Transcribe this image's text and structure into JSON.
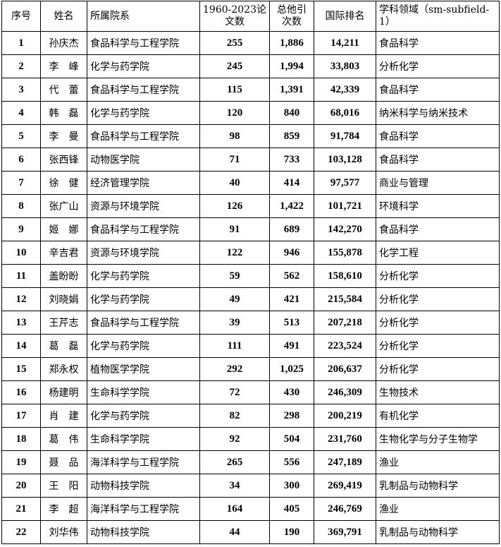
{
  "headers": [
    "序号",
    "姓名",
    "所属院系",
    "1960-2023论文数",
    "总他引次数",
    "国际排名",
    "学科领域（sm-subfield-1）"
  ],
  "rows": [
    [
      "1",
      "孙庆杰",
      "食品科学与工程学院",
      "255",
      "1,886",
      "14,211",
      "食品科学"
    ],
    [
      "2",
      "李　峰",
      "化学与药学院",
      "245",
      "1,994",
      "33,803",
      "分析化学"
    ],
    [
      "3",
      "代　蕾",
      "食品科学与工程学院",
      "115",
      "1,391",
      "42,339",
      "食品科学"
    ],
    [
      "4",
      "韩　磊",
      "化学与药学院",
      "120",
      "840",
      "68,016",
      "纳米科学与纳米技术"
    ],
    [
      "5",
      "李　曼",
      "食品科学与工程学院",
      "98",
      "859",
      "91,784",
      "食品科学"
    ],
    [
      "6",
      "张西锋",
      "动物医学院",
      "71",
      "733",
      "103,128",
      "食品科学"
    ],
    [
      "7",
      "徐　健",
      "经济管理学院",
      "40",
      "414",
      "97,577",
      "商业与管理"
    ],
    [
      "8",
      "张广山",
      "资源与环境学院",
      "126",
      "1,422",
      "101,721",
      "环境科学"
    ],
    [
      "9",
      "姬　娜",
      "食品科学与工程学院",
      "91",
      "689",
      "142,270",
      "食品科学"
    ],
    [
      "10",
      "辛吉君",
      "资源与环境学院",
      "122",
      "946",
      "155,878",
      "化学工程"
    ],
    [
      "11",
      "盖盼盼",
      "化学与药学院",
      "59",
      "562",
      "158,610",
      "分析化学"
    ],
    [
      "12",
      "刘晓娟",
      "化学与药学院",
      "49",
      "421",
      "215,584",
      "分析化学"
    ],
    [
      "13",
      "王芹志",
      "食品科学与工程学院",
      "39",
      "513",
      "207,218",
      "分析化学"
    ],
    [
      "14",
      "葛　磊",
      "化学与药学院",
      "111",
      "491",
      "223,524",
      "分析化学"
    ],
    [
      "15",
      "郑永权",
      "植物医学学院",
      "292",
      "1,025",
      "206,637",
      "分析化学"
    ],
    [
      "16",
      "杨建明",
      "生命科学学院",
      "72",
      "430",
      "246,309",
      "生物技术"
    ],
    [
      "17",
      "肖　建",
      "化学与药学院",
      "82",
      "298",
      "200,219",
      "有机化学"
    ],
    [
      "18",
      "葛　伟",
      "生命科学学院",
      "92",
      "504",
      "231,760",
      "生物化学与分子生物学"
    ],
    [
      "19",
      "聂　品",
      "海洋科学与工程学院",
      "265",
      "556",
      "247,189",
      "渔业"
    ],
    [
      "20",
      "王　阳",
      "动物科技学院",
      "34",
      "300",
      "269,419",
      "乳制品与动物科学"
    ],
    [
      "21",
      "李　超",
      "海洋科学与工程学院",
      "164",
      "405",
      "246,769",
      "渔业"
    ],
    [
      "22",
      "刘华伟",
      "动物科技学院",
      "44",
      "190",
      "369,791",
      "乳制品与动物科学"
    ]
  ]
}
